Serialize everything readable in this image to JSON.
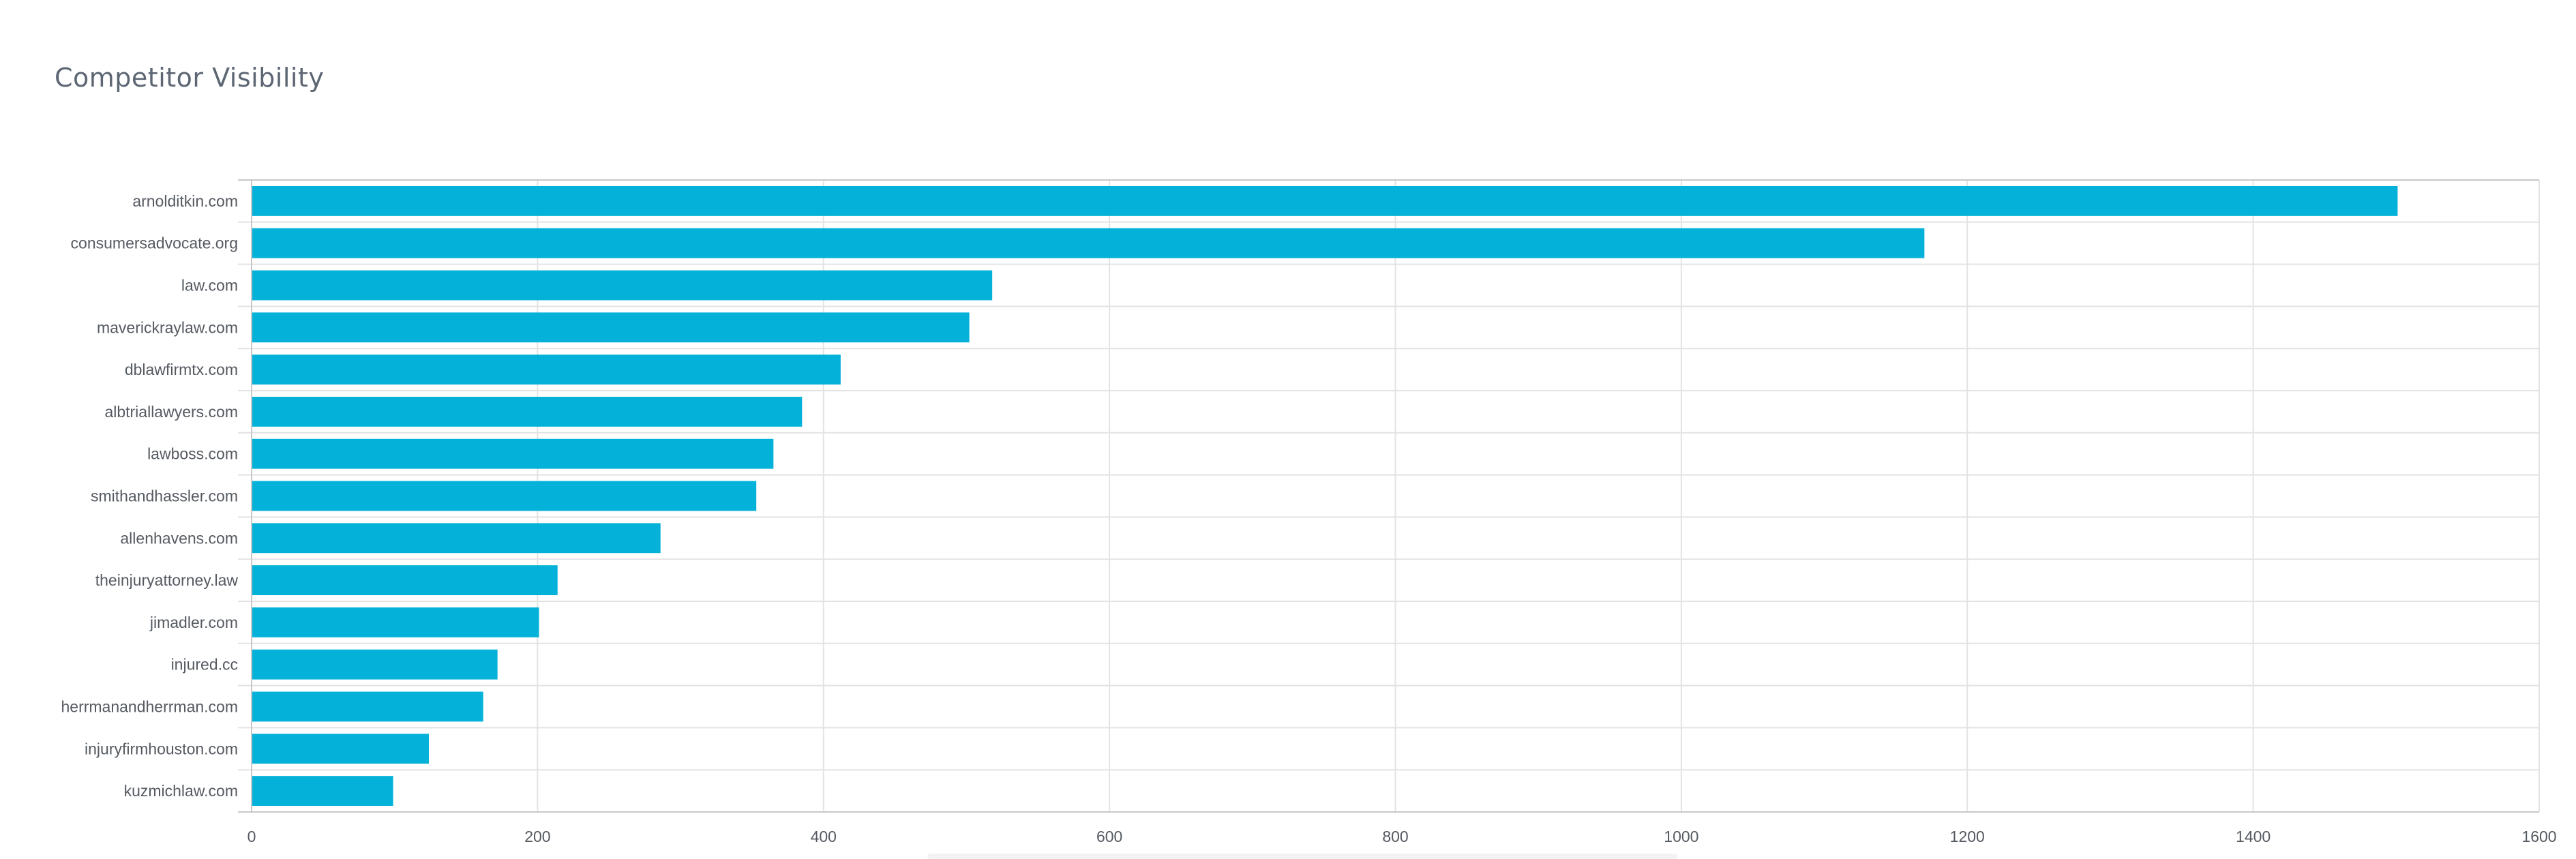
{
  "card": {
    "title": "Competitor Visibility"
  },
  "chart_data": {
    "type": "bar",
    "orientation": "horizontal",
    "title": "Competitor Visibility",
    "xlabel": "",
    "ylabel": "",
    "xlim": [
      0,
      1600
    ],
    "xticks": [
      0,
      200,
      400,
      600,
      800,
      1000,
      1200,
      1400,
      1600
    ],
    "grid": true,
    "legend": "none",
    "bar_color": "#04b2d9",
    "categories": [
      "arnolditkin.com",
      "consumersadvocate.org",
      "law.com",
      "maverickraylaw.com",
      "dblawfirmtx.com",
      "albtriallawyers.com",
      "lawboss.com",
      "smithandhassler.com",
      "allenhavens.com",
      "theinjuryattorney.law",
      "jimadler.com",
      "injured.cc",
      "herrmanandherrman.com",
      "injuryfirmhouston.com",
      "kuzmichlaw.com"
    ],
    "values": [
      1501,
      1170,
      518,
      502,
      412,
      385,
      365,
      353,
      286,
      214,
      201,
      172,
      162,
      124,
      99
    ]
  }
}
